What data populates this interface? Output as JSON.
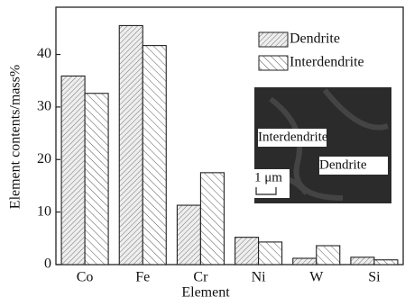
{
  "chart_data": {
    "type": "bar",
    "x_label": "Element",
    "y_label": "Element contents/mass%",
    "categories": [
      "Co",
      "Fe",
      "Cr",
      "Ni",
      "W",
      "Si"
    ],
    "series": [
      {
        "name": "Dendrite",
        "color": "#666666",
        "values": [
          35.9,
          45.5,
          11.3,
          5.2,
          1.2,
          1.4
        ]
      },
      {
        "name": "Interdendrite",
        "color": "#444444",
        "values": [
          32.6,
          41.7,
          17.5,
          4.3,
          3.6,
          0.9
        ]
      }
    ],
    "ylim": [
      0,
      49
    ],
    "yticks": [
      0,
      10,
      20,
      30,
      40
    ],
    "legend": "upper right",
    "inset_labels": [
      "Interdendrite",
      "Dendrite",
      "1 μm"
    ]
  }
}
